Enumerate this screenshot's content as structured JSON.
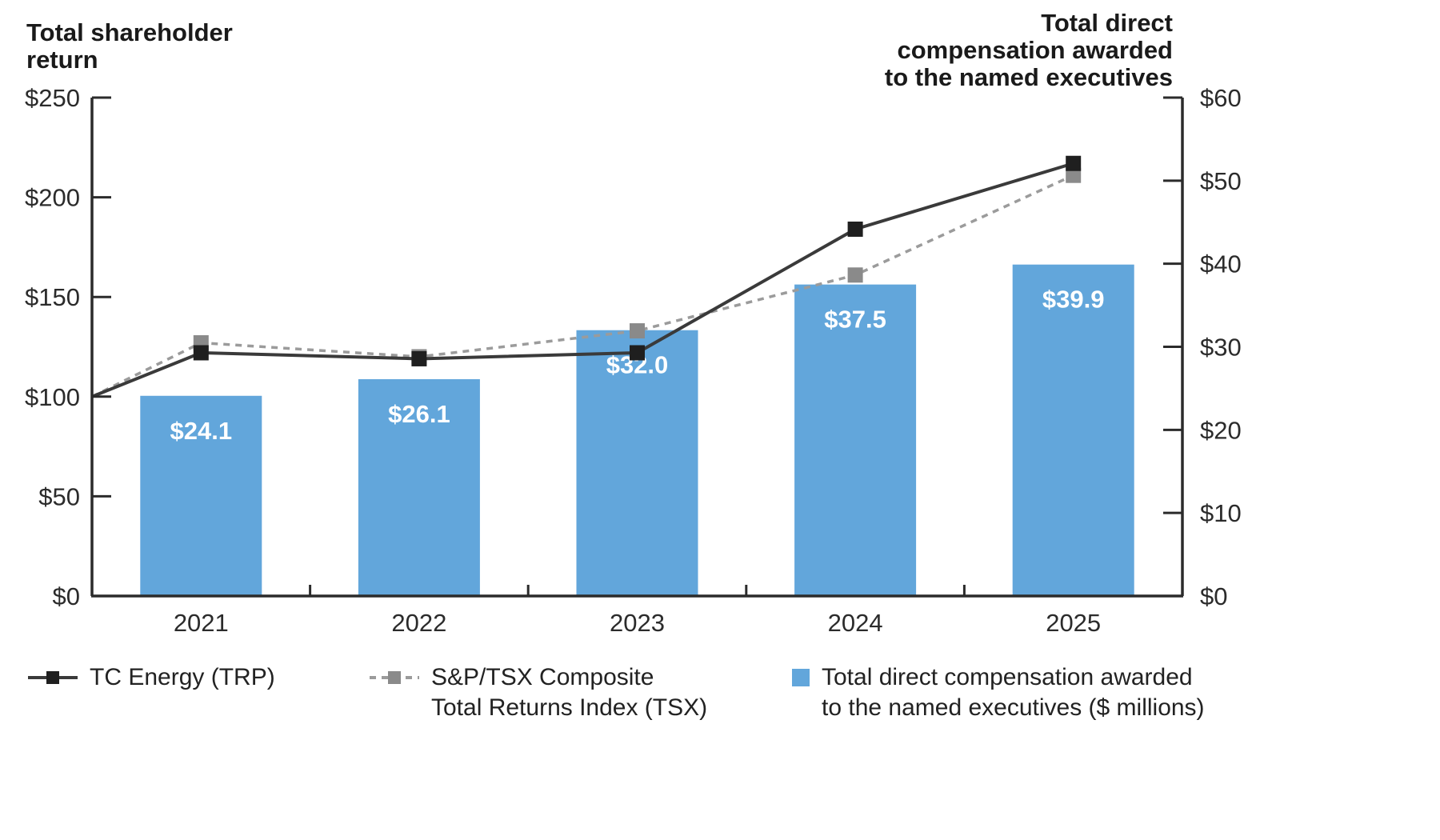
{
  "titles": {
    "left": "Total shareholder\nreturn",
    "right": "Total direct\ncompensation awarded\nto the named executives"
  },
  "legend": {
    "items": [
      {
        "label": "TC Energy (TRP)"
      },
      {
        "label": "S&P/TSX Composite\nTotal Returns Index (TSX)"
      },
      {
        "label": "Total direct compensation awarded\nto the named executives ($ millions)"
      }
    ]
  },
  "chart_data": {
    "type": "combo",
    "categories": [
      "2021",
      "2022",
      "2023",
      "2024",
      "2025"
    ],
    "bar_series": {
      "name": "Total direct compensation awarded to the named executives ($ millions)",
      "type": "bar",
      "axis": "right",
      "values": [
        24.1,
        26.1,
        32.0,
        37.5,
        39.9
      ],
      "labels": [
        "$24.1",
        "$26.1",
        "$32.0",
        "$37.5",
        "$39.9"
      ],
      "color": "#62A6DB"
    },
    "line_series": [
      {
        "name": "TC Energy (TRP)",
        "type": "line",
        "axis": "left",
        "style": "solid",
        "color": "#3a3a3a",
        "marker_color": "#1f1f1f",
        "start_value": 100,
        "values": [
          122,
          119,
          122,
          184,
          217
        ]
      },
      {
        "name": "S&P/TSX Composite Total Returns Index (TSX)",
        "type": "line",
        "axis": "left",
        "style": "dashed",
        "color": "#9b9b9b",
        "marker_color": "#8a8a8a",
        "start_value": 100,
        "values": [
          127,
          120,
          133,
          161,
          211
        ]
      }
    ],
    "left_axis": {
      "title": "Total shareholder return",
      "min": 0,
      "max": 250,
      "tick_labels": [
        "$0",
        "$50",
        "$100",
        "$150",
        "$200",
        "$250"
      ]
    },
    "right_axis": {
      "title": "Total direct compensation awarded to the named executives",
      "min": 0,
      "max": 60,
      "tick_labels": [
        "$0",
        "$10",
        "$20",
        "$30",
        "$40",
        "$50",
        "$60"
      ]
    },
    "grid": false,
    "legend_position": "bottom"
  }
}
